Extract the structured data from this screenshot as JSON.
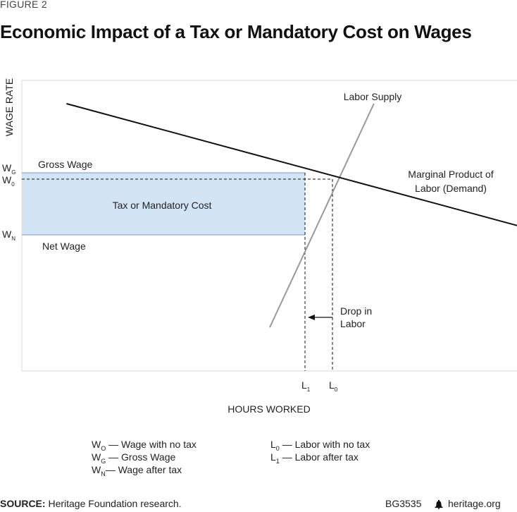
{
  "header": {
    "figure_label": "FIGURE 2",
    "title": "Economic Impact of a Tax or Mandatory Cost on Wages"
  },
  "chart_data": {
    "type": "line",
    "title": "Economic Impact of a Tax or Mandatory Cost on Wages",
    "xlabel": "HOURS WORKED",
    "ylabel": "WAGE RATE",
    "grid": false,
    "series": [
      {
        "name": "Marginal Product of Labor (Demand)",
        "points": [
          [
            0.09,
            0.92
          ],
          [
            1.0,
            0.5
          ]
        ]
      },
      {
        "name": "Labor Supply",
        "points": [
          [
            0.5,
            0.15
          ],
          [
            0.71,
            0.92
          ]
        ]
      }
    ],
    "labels": {
      "supply": "Labor Supply",
      "demand_line1": "Marginal Product of",
      "demand_line2": "Labor (Demand)",
      "gross_wage": "Gross Wage",
      "net_wage": "Net Wage",
      "tax_region": "Tax or Mandatory Cost",
      "drop_line1": "Drop in",
      "drop_line2": "Labor",
      "wg": "W",
      "wg_sub": "G",
      "wo": "W",
      "wo_sub": "0",
      "wn": "W",
      "wn_sub": "N",
      "l1": "L",
      "l1_sub": "1",
      "l0": "L",
      "l0_sub": "0"
    },
    "colors": {
      "demand": "#111111",
      "supply": "#999999",
      "tax_fill": "#d3e4f4",
      "tax_edge": "#8aaed0",
      "frame": "#d9d9d9"
    }
  },
  "legend": {
    "left": [
      {
        "sym": "W",
        "sub": "O",
        "text": " — Wage with no tax"
      },
      {
        "sym": "W",
        "sub": "G",
        "text": " — Gross Wage"
      },
      {
        "sym": "W",
        "sub": "N",
        "text": "— Wage after tax"
      }
    ],
    "right": [
      {
        "sym": "L",
        "sub": "0",
        "text": " — Labor with no tax"
      },
      {
        "sym": "L",
        "sub": "1",
        "text": " — Labor after tax"
      }
    ]
  },
  "footer": {
    "source_label": "SOURCE:",
    "source_text": " Heritage Foundation research.",
    "code": "BG3535",
    "bell_icon": "liberty-bell-icon",
    "site": "heritage.org"
  }
}
